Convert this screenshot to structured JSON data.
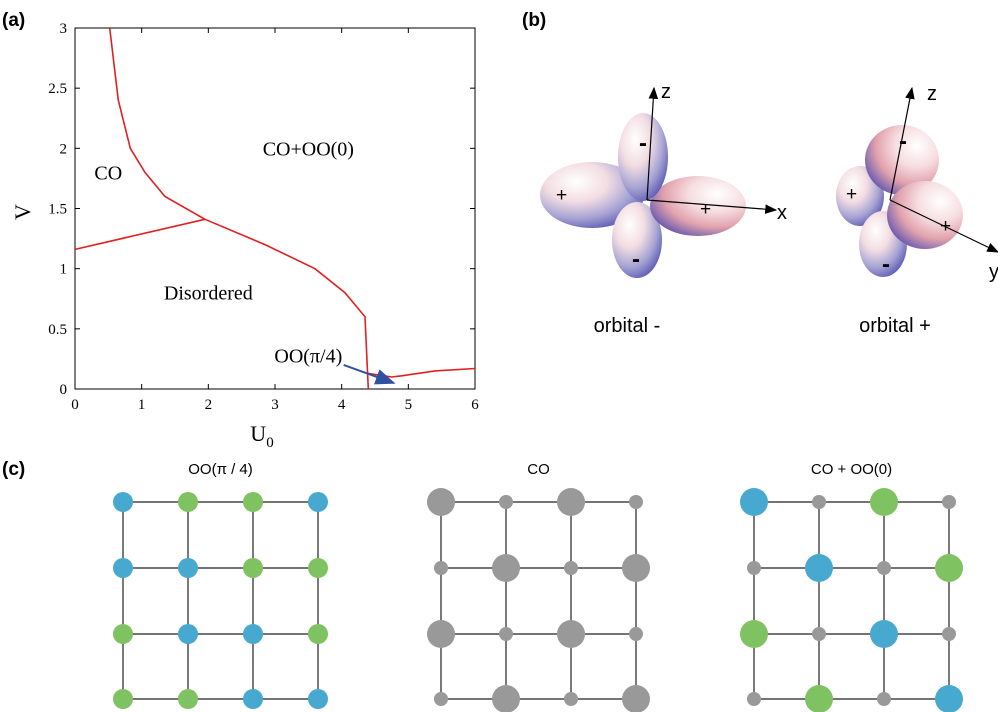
{
  "panels": {
    "a": {
      "label": "(a)",
      "chart_data": {
        "type": "line",
        "title": "",
        "xlabel_base": "U",
        "xlabel_sub": "0",
        "ylabel": "V",
        "xlim": [
          0,
          6
        ],
        "ylim": [
          0,
          3
        ],
        "xticks": [
          "0",
          "1",
          "2",
          "3",
          "4",
          "5",
          "6"
        ],
        "yticks": [
          "0",
          "0.5",
          "1",
          "1.5",
          "2",
          "2.5",
          "3"
        ],
        "line_color": "#e02020",
        "series": [
          {
            "x": [
              0.52,
              0.65,
              0.83,
              1.05,
              1.35,
              1.95
            ],
            "y": [
              3.0,
              2.4,
              2.0,
              1.8,
              1.6,
              1.41
            ]
          },
          {
            "x": [
              0.0,
              1.95
            ],
            "y": [
              1.16,
              1.41
            ]
          },
          {
            "x": [
              1.95,
              2.85,
              3.6,
              4.05,
              4.35,
              4.4
            ],
            "y": [
              1.41,
              1.2,
              1.0,
              0.8,
              0.6,
              0.0
            ]
          },
          {
            "x": [
              4.4,
              4.75,
              4.9,
              5.4,
              6.0
            ],
            "y": [
              0.13,
              0.1,
              0.11,
              0.15,
              0.17
            ]
          }
        ],
        "regions": [
          {
            "text": "CO",
            "x": 0.5,
            "y": 1.8
          },
          {
            "text": "CO+OO(0)",
            "x": 3.5,
            "y": 2.0
          },
          {
            "text": "Disordered",
            "x": 2.0,
            "y": 0.8
          },
          {
            "text": "OO(π/4)",
            "x": 3.5,
            "y": 0.28
          }
        ],
        "arrow": {
          "from": [
            4.03,
            0.2
          ],
          "to": [
            4.78,
            0.05
          ],
          "color": "#3050a0"
        }
      }
    },
    "b": {
      "label": "(b)",
      "orbitals": [
        {
          "caption": "orbital -",
          "axes": [
            "z",
            "x"
          ]
        },
        {
          "caption": "orbital +",
          "axes": [
            "z",
            "y"
          ]
        }
      ],
      "sign_plus": "+",
      "sign_minus": "-"
    },
    "c": {
      "label": "(c)",
      "colors": {
        "blue": "#47a9d0",
        "green": "#7fc262",
        "gray": "#999999"
      },
      "lattices": [
        {
          "title": "OO(π / 4)",
          "sites": [
            [
              [
                "b",
                "m"
              ],
              [
                "g",
                "m"
              ],
              [
                "g",
                "m"
              ],
              [
                "b",
                "m"
              ]
            ],
            [
              [
                "b",
                "m"
              ],
              [
                "b",
                "m"
              ],
              [
                "g",
                "m"
              ],
              [
                "g",
                "m"
              ]
            ],
            [
              [
                "g",
                "m"
              ],
              [
                "b",
                "m"
              ],
              [
                "b",
                "m"
              ],
              [
                "g",
                "m"
              ]
            ],
            [
              [
                "g",
                "m"
              ],
              [
                "g",
                "m"
              ],
              [
                "b",
                "m"
              ],
              [
                "b",
                "m"
              ]
            ]
          ]
        },
        {
          "title": "CO",
          "sites": [
            [
              [
                "k",
                "l"
              ],
              [
                "k",
                "s"
              ],
              [
                "k",
                "l"
              ],
              [
                "k",
                "s"
              ]
            ],
            [
              [
                "k",
                "s"
              ],
              [
                "k",
                "l"
              ],
              [
                "k",
                "s"
              ],
              [
                "k",
                "l"
              ]
            ],
            [
              [
                "k",
                "l"
              ],
              [
                "k",
                "s"
              ],
              [
                "k",
                "l"
              ],
              [
                "k",
                "s"
              ]
            ],
            [
              [
                "k",
                "s"
              ],
              [
                "k",
                "l"
              ],
              [
                "k",
                "s"
              ],
              [
                "k",
                "l"
              ]
            ]
          ]
        },
        {
          "title": "CO + OO(0)",
          "sites": [
            [
              [
                "b",
                "l"
              ],
              [
                "k",
                "s"
              ],
              [
                "g",
                "l"
              ],
              [
                "k",
                "s"
              ]
            ],
            [
              [
                "k",
                "s"
              ],
              [
                "b",
                "l"
              ],
              [
                "k",
                "s"
              ],
              [
                "g",
                "l"
              ]
            ],
            [
              [
                "g",
                "l"
              ],
              [
                "k",
                "s"
              ],
              [
                "b",
                "l"
              ],
              [
                "k",
                "s"
              ]
            ],
            [
              [
                "k",
                "s"
              ],
              [
                "g",
                "l"
              ],
              [
                "k",
                "s"
              ],
              [
                "b",
                "l"
              ]
            ]
          ]
        }
      ]
    }
  }
}
